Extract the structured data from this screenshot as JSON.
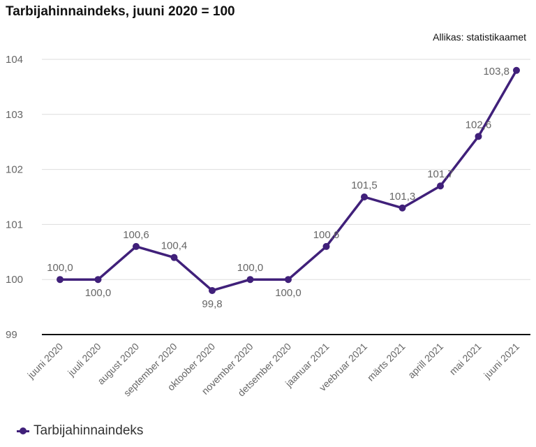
{
  "title": "Tarbijahinnaindeks, juuni 2020 = 100",
  "source": "Allikas: statistikaamet",
  "colors": {
    "line": "#40207a",
    "grid": "#dddddd",
    "axis": "#111111",
    "label": "#666666"
  },
  "legend_icon": "line-marker-icon",
  "chart_data": {
    "type": "line",
    "title": "Tarbijahinnaindeks, juuni 2020 = 100",
    "xlabel": "",
    "ylabel": "",
    "categories": [
      "juuni 2020",
      "juuli 2020",
      "august 2020",
      "september 2020",
      "oktoober 2020",
      "november 2020",
      "detsember 2020",
      "jaanuar 2021",
      "veebruar 2021",
      "märts 2021",
      "aprill 2021",
      "mai 2021",
      "juuni 2021"
    ],
    "series": [
      {
        "name": "Tarbijahinnaindeks",
        "values": [
          100.0,
          100.0,
          100.6,
          100.4,
          99.8,
          100.0,
          100.0,
          100.6,
          101.5,
          101.3,
          101.7,
          102.6,
          103.8
        ],
        "labels": [
          "100,0",
          "100,0",
          "100,6",
          "100,4",
          "99,8",
          "100,0",
          "100,0",
          "100,6",
          "101,5",
          "101,3",
          "101,7",
          "102,6",
          "103,8"
        ]
      }
    ],
    "ylim": [
      99,
      104
    ],
    "yticks": [
      99,
      100,
      101,
      102,
      103,
      104
    ],
    "grid": true,
    "legend": "bottom-left"
  }
}
